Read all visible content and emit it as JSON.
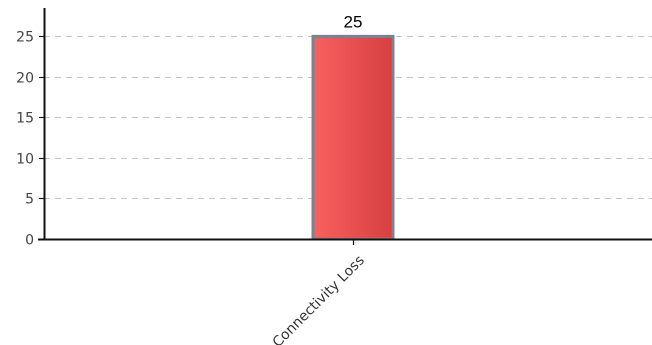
{
  "chart_data": {
    "type": "bar",
    "title": "",
    "xlabel": "",
    "ylabel": "",
    "categories": [
      "Connectivity Loss"
    ],
    "values": [
      25
    ],
    "data_labels": [
      "25"
    ],
    "ylim": [
      0,
      28.5
    ],
    "yticks": [
      0,
      5,
      10,
      15,
      20,
      25
    ],
    "ytick_labels": [
      "0",
      "5",
      "10",
      "15",
      "20",
      "25"
    ],
    "grid": true,
    "grid_style": "dashed-horizontal",
    "legend": "none",
    "colors": {
      "bar_fill_light": "#f96060",
      "bar_fill_dark": "#d64040",
      "bar_border": "#7a848c",
      "grid": "#c4c4c4",
      "axis": "#111111"
    }
  }
}
